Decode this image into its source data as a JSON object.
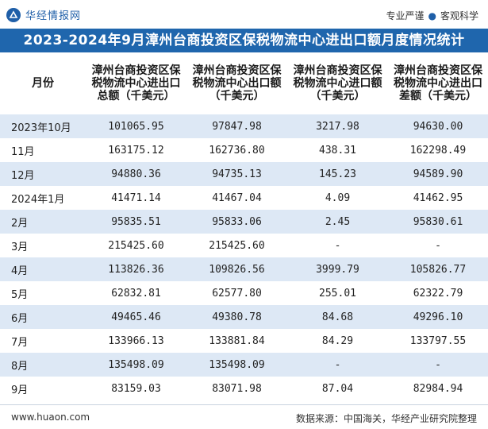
{
  "brand": {
    "logo_text": "华经情报网",
    "logo_icon": "huajing-logo-icon",
    "slogan_left": "专业严谨",
    "slogan_separator": "●",
    "slogan_right": "客观科学"
  },
  "title": "2023-2024年9月漳州台商投资区保税物流中心进出口额月度情况统计",
  "table": {
    "headers": [
      "月份",
      "漳州台商投资区保税物流中心进出口总额（千美元）",
      "漳州台商投资区保税物流中心出口额（千美元）",
      "漳州台商投资区保税物流中心进口额（千美元）",
      "漳州台商投资区保税物流中心进出口差额（千美元）"
    ],
    "rows": [
      [
        "2023年10月",
        "101065.95",
        "97847.98",
        "3217.98",
        "94630.00"
      ],
      [
        "11月",
        "163175.12",
        "162736.80",
        "438.31",
        "162298.49"
      ],
      [
        "12月",
        "94880.36",
        "94735.13",
        "145.23",
        "94589.90"
      ],
      [
        "2024年1月",
        "41471.14",
        "41467.04",
        "4.09",
        "41462.95"
      ],
      [
        "2月",
        "95835.51",
        "95833.06",
        "2.45",
        "95830.61"
      ],
      [
        "3月",
        "215425.60",
        "215425.60",
        "-",
        "-"
      ],
      [
        "4月",
        "113826.36",
        "109826.56",
        "3999.79",
        "105826.77"
      ],
      [
        "5月",
        "62832.81",
        "62577.80",
        "255.01",
        "62322.79"
      ],
      [
        "6月",
        "49465.46",
        "49380.78",
        "84.68",
        "49296.10"
      ],
      [
        "7月",
        "133966.13",
        "133881.84",
        "84.29",
        "133797.55"
      ],
      [
        "8月",
        "135498.09",
        "135498.09",
        "-",
        "-"
      ],
      [
        "9月",
        "83159.03",
        "83071.98",
        "87.04",
        "82984.94"
      ]
    ]
  },
  "footer": {
    "url": "www.huaon.com",
    "source": "数据来源：中国海关，华经产业研究院整理"
  },
  "colors": {
    "title_bg": "#1f66ad",
    "row_stripe": "#dde8f5",
    "brand": "#1f5fa8"
  }
}
